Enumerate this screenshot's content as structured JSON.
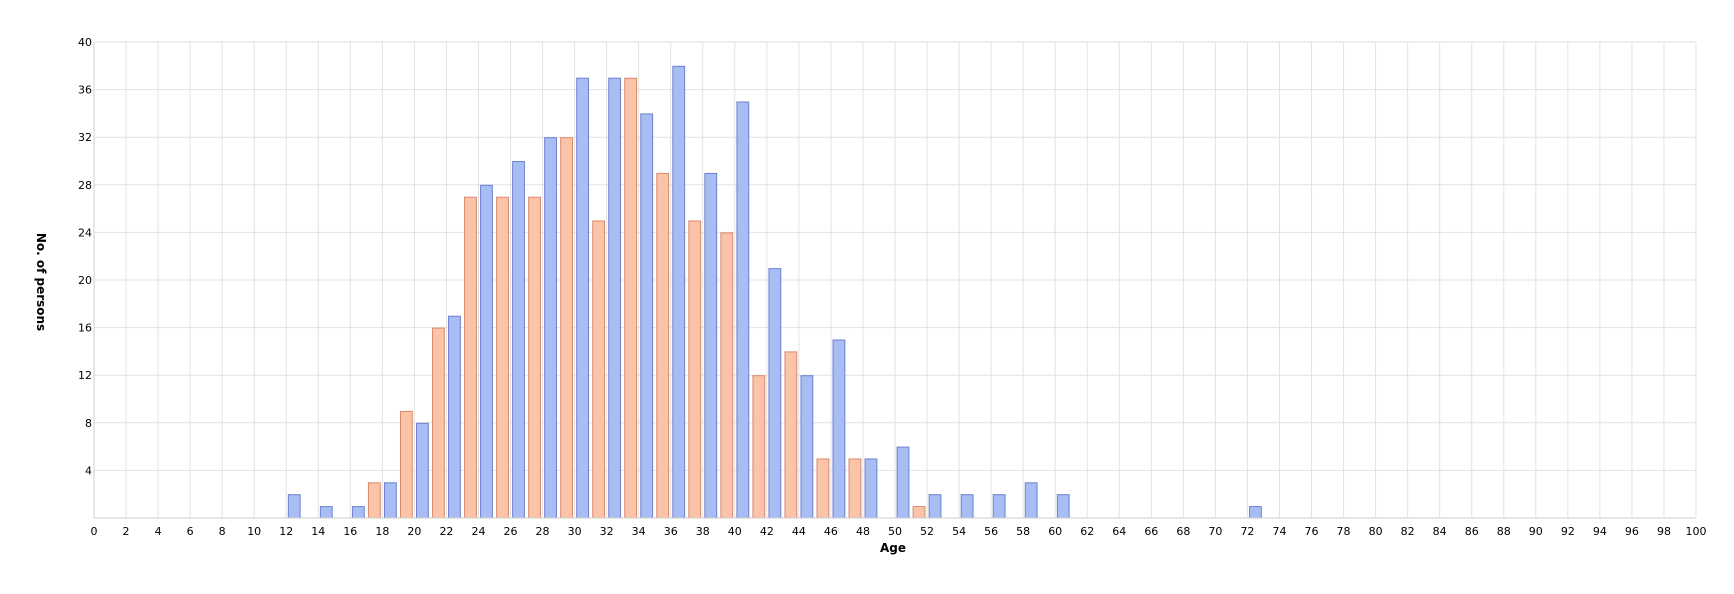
{
  "chart_data": {
    "type": "bar",
    "xlabel": "Age",
    "ylabel": "No. of persons",
    "xlim": [
      0,
      100
    ],
    "ylim": [
      0,
      40
    ],
    "x_ticks": [
      0,
      2,
      4,
      6,
      8,
      10,
      12,
      14,
      16,
      18,
      20,
      22,
      24,
      26,
      28,
      30,
      32,
      34,
      36,
      38,
      40,
      42,
      44,
      46,
      48,
      50,
      52,
      54,
      56,
      58,
      60,
      62,
      64,
      66,
      68,
      70,
      72,
      74,
      76,
      78,
      80,
      82,
      84,
      86,
      88,
      90,
      92,
      94,
      96,
      98,
      100
    ],
    "y_ticks": [
      4,
      8,
      12,
      16,
      20,
      24,
      28,
      32,
      36,
      40
    ],
    "grid": true,
    "bar_width": 0.8,
    "colors": {
      "blue_fill": "#a8bdf4",
      "blue_stroke": "#6b82cf",
      "orange_fill": "#fbc3a8",
      "orange_stroke": "#d98a6a"
    },
    "series": [
      {
        "color_key": "blue",
        "points": [
          {
            "x": 12.5,
            "y": 2
          },
          {
            "x": 14.5,
            "y": 1
          },
          {
            "x": 16.5,
            "y": 1
          },
          {
            "x": 18.5,
            "y": 3
          },
          {
            "x": 20.5,
            "y": 8
          },
          {
            "x": 22.5,
            "y": 17
          },
          {
            "x": 24.5,
            "y": 28
          },
          {
            "x": 26.5,
            "y": 30
          },
          {
            "x": 28.5,
            "y": 32
          },
          {
            "x": 30.5,
            "y": 37
          },
          {
            "x": 32.5,
            "y": 37
          },
          {
            "x": 34.5,
            "y": 34
          },
          {
            "x": 36.5,
            "y": 38
          },
          {
            "x": 38.5,
            "y": 29
          },
          {
            "x": 40.5,
            "y": 35
          },
          {
            "x": 42.5,
            "y": 21
          },
          {
            "x": 44.5,
            "y": 12
          },
          {
            "x": 46.5,
            "y": 15
          },
          {
            "x": 48.5,
            "y": 5
          },
          {
            "x": 50.5,
            "y": 6
          },
          {
            "x": 52.5,
            "y": 2
          },
          {
            "x": 54.5,
            "y": 2
          },
          {
            "x": 56.5,
            "y": 2
          },
          {
            "x": 58.5,
            "y": 3
          },
          {
            "x": 60.5,
            "y": 2
          },
          {
            "x": 72.5,
            "y": 1
          }
        ]
      },
      {
        "color_key": "orange",
        "points": [
          {
            "x": 17.5,
            "y": 3
          },
          {
            "x": 19.5,
            "y": 9
          },
          {
            "x": 21.5,
            "y": 16
          },
          {
            "x": 23.5,
            "y": 27
          },
          {
            "x": 25.5,
            "y": 27
          },
          {
            "x": 27.5,
            "y": 27
          },
          {
            "x": 29.5,
            "y": 32
          },
          {
            "x": 31.5,
            "y": 25
          },
          {
            "x": 33.5,
            "y": 37
          },
          {
            "x": 35.5,
            "y": 29
          },
          {
            "x": 37.5,
            "y": 25
          },
          {
            "x": 39.5,
            "y": 24
          },
          {
            "x": 41.5,
            "y": 12
          },
          {
            "x": 43.5,
            "y": 14
          },
          {
            "x": 45.5,
            "y": 5
          },
          {
            "x": 47.5,
            "y": 5
          },
          {
            "x": 51.5,
            "y": 1
          }
        ]
      }
    ]
  }
}
